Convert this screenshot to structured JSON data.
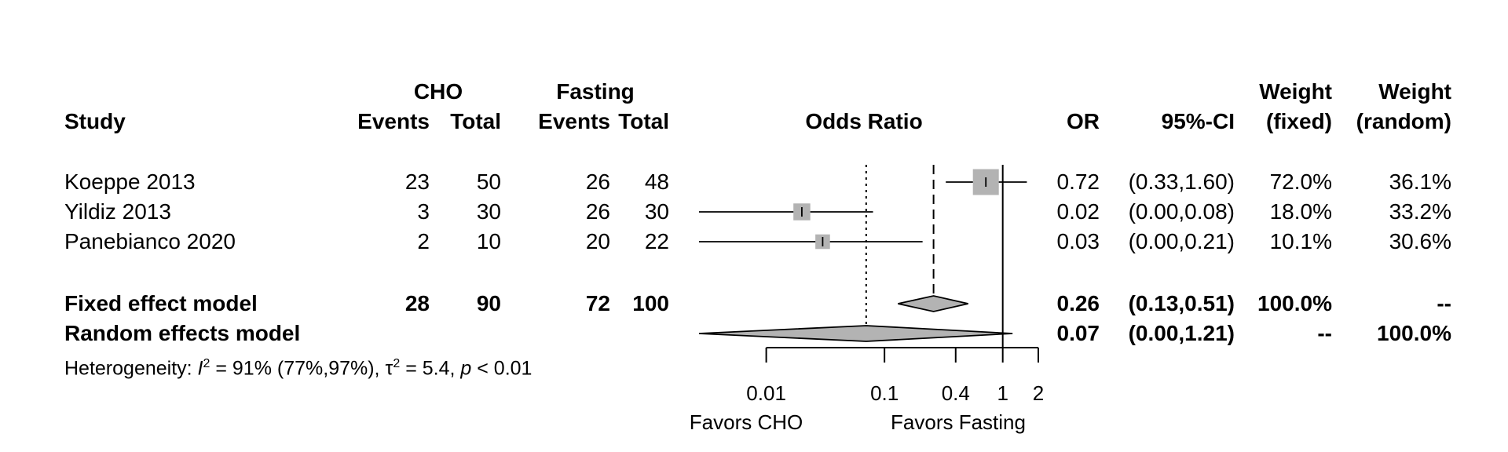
{
  "headers": {
    "group1": "CHO",
    "group2": "Fasting",
    "study": "Study",
    "events1": "Events",
    "total1": "Total",
    "events2": "Events",
    "total2": "Total",
    "effect": "Odds Ratio",
    "or": "OR",
    "ci": "95%-CI",
    "weight_fixed_1": "Weight",
    "weight_fixed_2": "(fixed)",
    "weight_random_1": "Weight",
    "weight_random_2": "(random)"
  },
  "studies": [
    {
      "name": "Koeppe 2013",
      "e1": "23",
      "n1": "50",
      "e2": "26",
      "n2": "48",
      "or_text": "0.72",
      "ci_text": "(0.33,1.60)",
      "w_fixed": "72.0%",
      "w_random": "36.1%"
    },
    {
      "name": "Yildiz 2013",
      "e1": "3",
      "n1": "30",
      "e2": "26",
      "n2": "30",
      "or_text": "0.02",
      "ci_text": "(0.00,0.08)",
      "w_fixed": "18.0%",
      "w_random": "33.2%"
    },
    {
      "name": "Panebianco 2020",
      "e1": "2",
      "n1": "10",
      "e2": "20",
      "n2": "22",
      "or_text": "0.03",
      "ci_text": "(0.00,0.21)",
      "w_fixed": "10.1%",
      "w_random": "30.6%"
    }
  ],
  "fixed": {
    "name": "Fixed effect model",
    "e1": "28",
    "n1": "90",
    "e2": "72",
    "n2": "100",
    "or_text": "0.26",
    "ci_text": "(0.13,0.51)",
    "w_fixed": "100.0%",
    "w_random": "--"
  },
  "random": {
    "name": "Random effects model",
    "or_text": "0.07",
    "ci_text": "(0.00,1.21)",
    "w_fixed": "--",
    "w_random": "100.0%"
  },
  "heterogeneity": {
    "prefix": "Heterogeneity: ",
    "i2_sym": "I",
    "i2_sup": "2",
    "i2_val": " = 91% (77%,97%), ",
    "tau_sym": "τ",
    "tau_sup": "2",
    "tau_val": " = 5.4, ",
    "p_sym": "p",
    "p_val": " < 0.01"
  },
  "axis": {
    "favors_left": "Favors CHO",
    "favors_right": "Favors Fasting"
  },
  "chart_data": {
    "type": "forest",
    "scale": "log",
    "xlim": [
      0.0027,
      2.0
    ],
    "ticks": [
      0.01,
      0.1,
      0.4,
      1,
      2
    ],
    "tick_labels": [
      "0.01",
      "0.1",
      "0.4",
      "1",
      "2"
    ],
    "reference_line": 1,
    "points": [
      {
        "study": "Koeppe 2013",
        "or": 0.72,
        "lower": 0.33,
        "upper": 1.6,
        "weight": 72.0
      },
      {
        "study": "Yildiz 2013",
        "or": 0.02,
        "lower": 0.0,
        "upper": 0.08,
        "weight": 18.0
      },
      {
        "study": "Panebianco 2020",
        "or": 0.03,
        "lower": 0.0,
        "upper": 0.21,
        "weight": 10.1
      }
    ],
    "summaries": [
      {
        "model": "Fixed effect model",
        "or": 0.26,
        "lower": 0.13,
        "upper": 0.51
      },
      {
        "model": "Random effects model",
        "or": 0.07,
        "lower": 0.0,
        "upper": 1.21
      }
    ],
    "colors": {
      "square": "#b3b3b3",
      "diamond": "#b3b3b3",
      "line": "#000000"
    }
  }
}
